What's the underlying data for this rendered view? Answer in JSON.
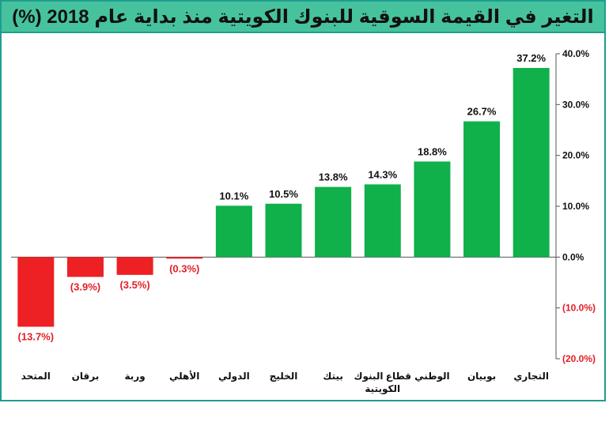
{
  "chart_data": {
    "type": "bar",
    "title": "التغير في القيمة السوقية للبنوك الكويتية منذ بداية عام 2018 (%)",
    "categories": [
      "المتحد",
      "برقان",
      "وربة",
      "الأهلي",
      "الدولي",
      "الخليج",
      "بيتك",
      "قطاع البنوك الكويتية",
      "الوطني",
      "بوبيان",
      "التجاري"
    ],
    "values": [
      -13.7,
      -3.9,
      -3.5,
      -0.3,
      10.1,
      10.5,
      13.8,
      14.3,
      18.8,
      26.7,
      37.2
    ],
    "data_labels": [
      "(13.7%)",
      "(3.9%)",
      "(3.5%)",
      "(0.3%)",
      "10.1%",
      "10.5%",
      "13.8%",
      "14.3%",
      "18.8%",
      "26.7%",
      "37.2%"
    ],
    "ylim": [
      -20,
      40
    ],
    "yticks": [
      40,
      30,
      20,
      10,
      0,
      -10,
      -20
    ],
    "ytick_labels": [
      "40.0%",
      "30.0%",
      "20.0%",
      "10.0%",
      "0.0%",
      "(10.0%)",
      "(20.0%)"
    ],
    "y_axis_position": "right",
    "grid": false,
    "xlabel": "",
    "ylabel": "",
    "colors": {
      "positive": "#10b04a",
      "negative": "#ed2024",
      "negative_text": "#e21f26",
      "title_bg": "#46c39d",
      "border": "#1f9d8f"
    }
  }
}
